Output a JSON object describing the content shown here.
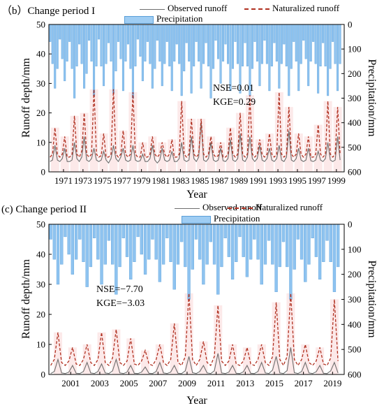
{
  "chart_data": [
    {
      "type": "line",
      "panel_label": "（b）Change period I",
      "xlabel": "Year",
      "ylabel": "Runoff depth/mm",
      "y2label": "Precipitation/mm",
      "xlim": [
        1970.0,
        2000.3
      ],
      "ylim": [
        0,
        50
      ],
      "y2lim": [
        600,
        0
      ],
      "x_ticks": [
        "1971",
        "1973",
        "1975",
        "1977",
        "1979",
        "1981",
        "1983",
        "1985",
        "1987",
        "1989",
        "1991",
        "1993",
        "1995",
        "1997",
        "1999"
      ],
      "y_ticks": [
        "0",
        "10",
        "20",
        "30",
        "40",
        "50"
      ],
      "y2_ticks": [
        "0",
        "100",
        "200",
        "300",
        "400",
        "500",
        "600"
      ],
      "annotations": [
        "NSE=0.01",
        "KGE=0.29"
      ],
      "series": [
        {
          "name": "Observed runoff",
          "style": "solid",
          "color": "#6e6e6e",
          "year_start": 1970,
          "points_per_year": 4,
          "values": [
            3.5,
            4,
            9,
            4,
            3.5,
            4.5,
            8,
            3.5,
            3.5,
            4,
            10,
            4.5,
            3.5,
            5,
            12,
            4,
            3.5,
            4.5,
            8,
            4,
            3.5,
            4,
            7,
            4,
            3,
            4.5,
            9,
            4.5,
            3.5,
            5,
            8,
            4,
            3.5,
            4,
            9,
            4,
            3.5,
            3.8,
            6,
            3.5,
            3.5,
            4.5,
            9,
            4,
            3,
            4,
            8,
            4,
            3.5,
            4,
            7,
            3.5,
            3.5,
            4.5,
            10,
            4,
            3.5,
            4,
            12,
            4.5,
            3.5,
            5,
            17,
            4,
            3.5,
            4.5,
            10,
            4,
            3.5,
            4,
            8,
            3.8,
            3.5,
            4.5,
            11,
            4,
            3.5,
            4.5,
            13,
            4,
            3.5,
            5,
            12,
            4.5,
            3.5,
            4.5,
            9,
            4,
            3.5,
            4.5,
            8,
            4,
            3.5,
            4.5,
            9,
            4,
            3.5,
            5,
            14,
            4,
            3.5,
            4.5,
            8,
            4,
            3.5,
            4,
            8,
            3.8,
            3.5,
            4,
            7,
            4,
            3.5,
            4.5,
            10,
            4,
            3.5,
            4,
            12,
            4
          ]
        },
        {
          "name": "Naturalized runoff",
          "style": "dashed",
          "color": "#b03020",
          "year_start": 1970,
          "points_per_year": 4,
          "values": [
            5,
            6,
            15,
            6,
            5,
            6,
            12,
            5,
            5,
            6,
            19,
            6,
            5,
            7,
            20,
            6,
            5,
            6,
            28,
            6,
            5,
            5.5,
            13,
            5,
            5,
            6,
            28,
            6,
            5,
            6,
            14,
            6,
            5,
            6,
            27,
            6,
            5,
            5,
            10,
            5,
            5,
            6,
            12,
            6,
            5,
            6,
            10,
            6,
            5,
            6,
            11,
            5,
            5,
            6,
            24,
            6,
            5,
            6,
            18,
            6,
            5,
            6,
            18,
            6,
            5,
            6,
            12,
            6,
            5,
            5.5,
            10,
            5,
            5,
            6,
            15,
            6,
            5,
            6,
            20,
            6,
            5,
            6,
            26,
            6,
            5,
            6,
            11,
            6,
            5,
            6,
            13,
            6,
            5,
            6,
            27,
            6,
            5,
            6,
            22,
            6,
            5,
            6,
            13,
            6,
            5,
            6,
            12,
            5,
            5,
            6,
            16,
            6,
            5,
            6,
            24,
            6,
            5,
            6,
            22,
            6
          ]
        },
        {
          "name": "Precipitation",
          "style": "bar",
          "color": "#9fcdf3",
          "year_start": 1970,
          "points_per_year": 4,
          "values": [
            70,
            160,
            260,
            180,
            60,
            140,
            230,
            150,
            70,
            180,
            300,
            170,
            80,
            160,
            260,
            200,
            65,
            150,
            290,
            170,
            60,
            170,
            250,
            160,
            75,
            150,
            280,
            190,
            70,
            140,
            270,
            150,
            80,
            180,
            300,
            170,
            60,
            130,
            230,
            150,
            70,
            160,
            260,
            180,
            65,
            150,
            250,
            160,
            70,
            170,
            270,
            150,
            80,
            160,
            290,
            190,
            75,
            150,
            280,
            170,
            70,
            150,
            260,
            160,
            75,
            170,
            300,
            180,
            65,
            140,
            240,
            150,
            80,
            160,
            270,
            180,
            70,
            160,
            280,
            170,
            75,
            170,
            290,
            180,
            70,
            150,
            250,
            160,
            65,
            160,
            270,
            170,
            75,
            150,
            260,
            160,
            80,
            170,
            290,
            180,
            70,
            150,
            270,
            160,
            65,
            140,
            250,
            150,
            70,
            160,
            280,
            170,
            75,
            170,
            290,
            180,
            70,
            160,
            270,
            160
          ]
        }
      ]
    },
    {
      "type": "line",
      "panel_label": "(c) Change period II",
      "xlabel": "Year",
      "ylabel": "Runoff depth/mm",
      "y2label": "Precipitation/mm",
      "xlim": [
        2000.0,
        2020.3
      ],
      "ylim": [
        0,
        50
      ],
      "y2lim": [
        600,
        0
      ],
      "x_ticks": [
        "2001",
        "2003",
        "2005",
        "2007",
        "2009",
        "2011",
        "2013",
        "2015",
        "2017",
        "2019"
      ],
      "y_ticks": [
        "0",
        "10",
        "20",
        "30",
        "40",
        "50"
      ],
      "y2_ticks": [
        "0",
        "100",
        "200",
        "300",
        "400",
        "500",
        "600"
      ],
      "annotations": [
        "NSE=−7.70",
        "KGE=−3.03"
      ],
      "series": [
        {
          "name": "Observed runoff",
          "style": "solid",
          "color": "#6e6e6e",
          "year_start": 2000,
          "points_per_year": 4,
          "values": [
            0.3,
            1,
            5,
            0.5,
            0.3,
            0.8,
            3,
            0.4,
            0.3,
            1,
            4,
            0.5,
            0.3,
            1,
            3.5,
            0.5,
            0.3,
            1.2,
            5,
            0.5,
            0.3,
            0.8,
            3,
            0.4,
            0.3,
            0.8,
            2.5,
            0.4,
            0.3,
            1,
            4,
            0.5,
            0.3,
            0.8,
            3,
            0.4,
            0.3,
            1.2,
            6,
            0.6,
            0.3,
            1,
            3,
            0.5,
            0.3,
            1.2,
            7,
            0.5,
            0.3,
            0.8,
            3,
            0.4,
            0.3,
            0.9,
            3,
            0.4,
            0.3,
            1,
            4,
            0.5,
            0.3,
            1.5,
            6,
            0.5,
            0.3,
            1.3,
            9,
            0.6,
            0.3,
            1,
            4,
            0.5,
            0.3,
            0.9,
            3,
            0.4,
            0.3,
            1.2,
            4,
            0.5
          ]
        },
        {
          "name": "Naturalized runoff",
          "style": "dashed",
          "color": "#b03020",
          "year_start": 2000,
          "points_per_year": 4,
          "values": [
            3,
            5,
            14,
            4,
            3,
            4.5,
            9,
            3.5,
            3,
            5,
            10,
            4,
            3,
            5,
            14,
            4,
            3,
            5.5,
            15,
            4,
            3,
            4.5,
            12,
            3.5,
            3,
            4.5,
            8,
            3.5,
            3,
            5,
            10,
            4,
            3,
            5,
            17,
            4,
            3,
            6,
            27,
            5,
            3,
            5,
            11,
            4,
            3,
            6,
            23,
            4.5,
            3,
            4.5,
            10,
            3.5,
            3,
            4.5,
            9,
            3.5,
            3,
            5,
            10,
            4,
            3,
            6,
            24,
            5,
            3,
            6,
            27,
            5,
            3,
            5,
            10,
            4,
            3,
            4.5,
            9,
            3.5,
            3,
            5.5,
            25,
            4.5
          ]
        },
        {
          "name": "Precipitation",
          "style": "bar",
          "color": "#9fcdf3",
          "year_start": 2000,
          "points_per_year": 4,
          "values": [
            60,
            140,
            240,
            160,
            50,
            120,
            200,
            140,
            60,
            150,
            250,
            170,
            55,
            140,
            240,
            160,
            65,
            160,
            280,
            170,
            55,
            130,
            220,
            150,
            50,
            120,
            200,
            140,
            60,
            140,
            230,
            160,
            55,
            150,
            260,
            160,
            70,
            170,
            300,
            180,
            60,
            140,
            240,
            160,
            70,
            160,
            280,
            170,
            55,
            130,
            220,
            150,
            50,
            130,
            210,
            140,
            60,
            140,
            240,
            160,
            65,
            160,
            270,
            170,
            70,
            170,
            300,
            180,
            60,
            140,
            230,
            160,
            55,
            130,
            220,
            150,
            65,
            150,
            270,
            170
          ]
        }
      ]
    }
  ]
}
